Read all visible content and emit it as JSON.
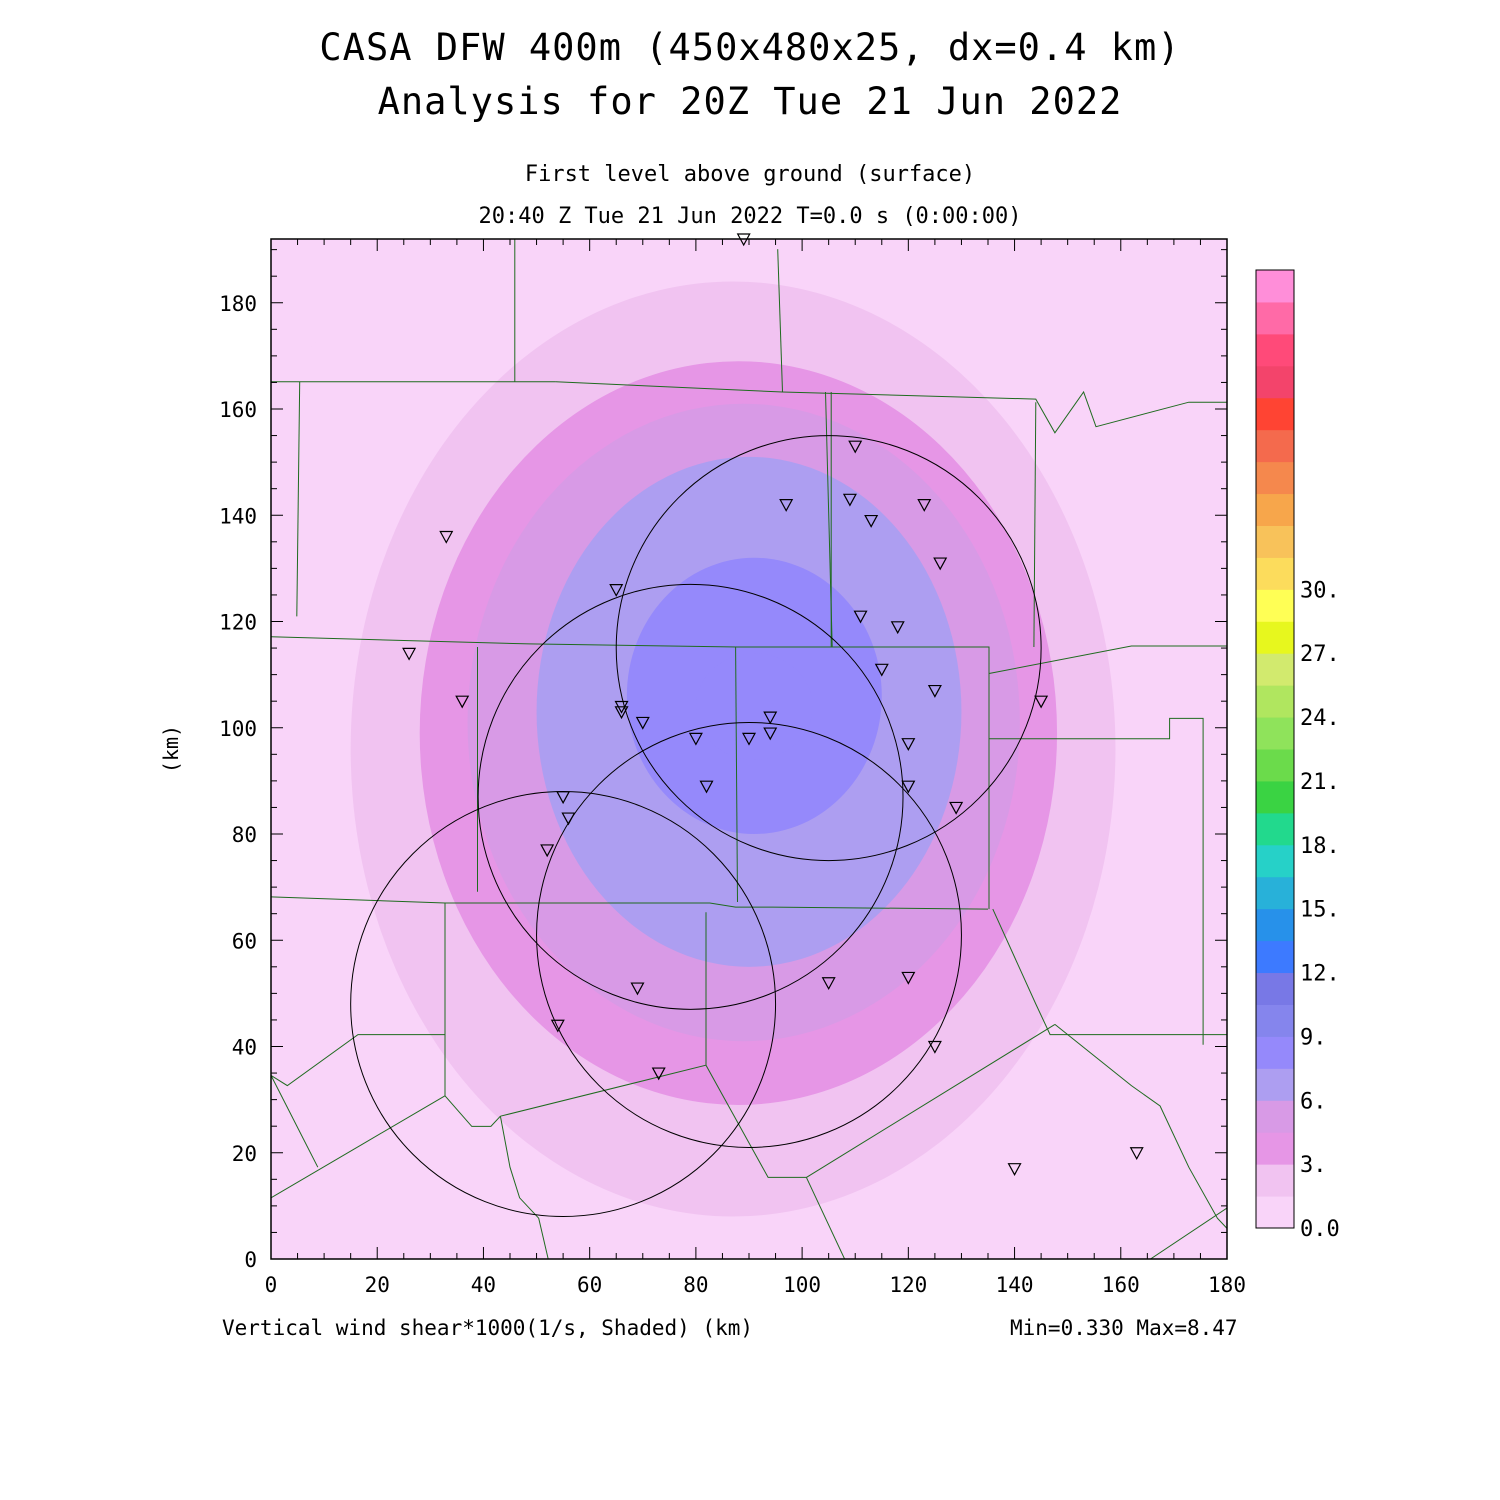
{
  "header": {
    "title_line1": "CASA DFW 400m (450x480x25, dx=0.4 km)",
    "title_line2": "Analysis for 20Z Tue 21 Jun 2022",
    "level": "First level above ground (surface)",
    "valid_time": "20:40 Z Tue 21 Jun 2022   T=0.0 s (0:00:00)"
  },
  "footer": {
    "variable": "Vertical wind shear*1000(1/s, Shaded)  (km)",
    "minmax": "Min=0.330 Max=8.47"
  },
  "chart_data": {
    "type": "heatmap",
    "xlabel": "(km)",
    "ylabel": "(km)",
    "xlim": [
      0,
      180
    ],
    "ylim": [
      0,
      192
    ],
    "x_ticks": [
      0,
      20,
      40,
      60,
      80,
      100,
      120,
      140,
      160,
      180
    ],
    "y_ticks": [
      0,
      20,
      40,
      60,
      80,
      100,
      120,
      140,
      160,
      180
    ],
    "colorbar": {
      "min": 0.0,
      "max": 30.0,
      "step": 1.5,
      "tick_labels": [
        "0.0",
        "3.",
        "6.",
        "9.",
        "12.",
        "15.",
        "18.",
        "21.",
        "24.",
        "27.",
        "30."
      ],
      "colors": [
        "#f9d4f9",
        "#f1c3f1",
        "#e696e6",
        "#d89ae6",
        "#ad9ef1",
        "#9589fb",
        "#8585ed",
        "#7878e6",
        "#3d7aff",
        "#2791ea",
        "#28b1d9",
        "#26d1c8",
        "#22d98d",
        "#3ad343",
        "#6bdb4b",
        "#8fe35b",
        "#b0e65f",
        "#d2ea6e",
        "#e7f71e",
        "#ffff55",
        "#fcdc5c",
        "#f8c25a",
        "#f7a64b",
        "#f5884d",
        "#f46a4d",
        "#ff4433",
        "#f3446b",
        "#ff4a79",
        "#ff6aa7",
        "#ff8ed9"
      ]
    },
    "shading_levels": [
      {
        "level": 0.33,
        "cx": 85,
        "cy": 96,
        "rx": 105,
        "ry": 112
      },
      {
        "level": 1.5,
        "cx": 87,
        "cy": 96,
        "rx": 72,
        "ry": 88
      },
      {
        "level": 3.0,
        "cx": 88,
        "cy": 99,
        "rx": 60,
        "ry": 70
      },
      {
        "level": 4.5,
        "cx": 89,
        "cy": 101,
        "rx": 52,
        "ry": 60
      },
      {
        "level": 6.0,
        "cx": 90,
        "cy": 103,
        "rx": 40,
        "ry": 48
      },
      {
        "level": 7.5,
        "cx": 91,
        "cy": 106,
        "rx": 24,
        "ry": 26
      },
      {
        "level": 8.47,
        "cx": 91,
        "cy": 104,
        "rx": 11,
        "ry": 10
      }
    ],
    "radar_ranges": [
      {
        "cx": 105,
        "cy": 115,
        "r": 40
      },
      {
        "cx": 79,
        "cy": 87,
        "r": 40
      },
      {
        "cx": 90,
        "cy": 61,
        "r": 40
      },
      {
        "cx": 55,
        "cy": 48,
        "r": 40
      }
    ],
    "stations": [
      [
        89,
        192
      ],
      [
        110,
        153
      ],
      [
        97,
        142
      ],
      [
        109,
        143
      ],
      [
        113,
        139
      ],
      [
        123,
        142
      ],
      [
        126,
        131
      ],
      [
        33,
        136
      ],
      [
        65,
        126
      ],
      [
        111,
        121
      ],
      [
        118,
        119
      ],
      [
        26,
        114
      ],
      [
        115,
        111
      ],
      [
        125,
        107
      ],
      [
        145,
        105
      ],
      [
        36,
        105
      ],
      [
        66,
        104
      ],
      [
        66,
        103
      ],
      [
        70,
        101
      ],
      [
        94,
        102
      ],
      [
        80,
        98
      ],
      [
        90,
        98
      ],
      [
        94,
        99
      ],
      [
        120,
        97
      ],
      [
        82,
        89
      ],
      [
        120,
        89
      ],
      [
        55,
        87
      ],
      [
        56,
        83
      ],
      [
        129,
        85
      ],
      [
        52,
        77
      ],
      [
        120,
        53
      ],
      [
        105,
        52
      ],
      [
        69,
        51
      ],
      [
        54,
        44
      ],
      [
        125,
        40
      ],
      [
        73,
        35
      ],
      [
        163,
        20
      ],
      [
        140,
        17
      ]
    ]
  }
}
